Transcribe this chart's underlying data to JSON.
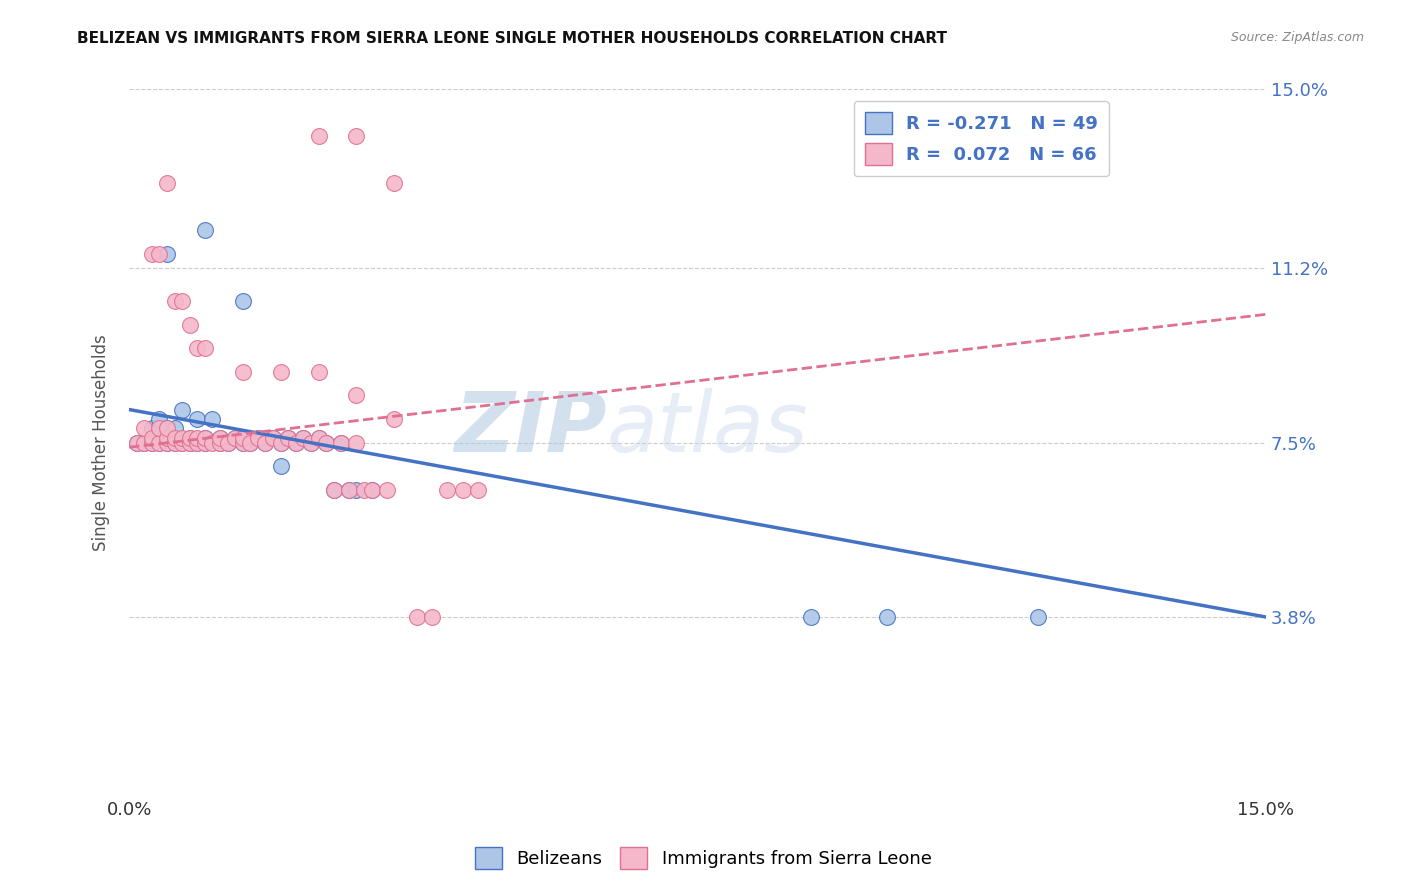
{
  "title": "BELIZEAN VS IMMIGRANTS FROM SIERRA LEONE SINGLE MOTHER HOUSEHOLDS CORRELATION CHART",
  "source": "Source: ZipAtlas.com",
  "ylabel": "Single Mother Households",
  "xmin": 0.0,
  "xmax": 0.15,
  "ymin": 0.0,
  "ymax": 0.15,
  "yticks": [
    0.038,
    0.075,
    0.112,
    0.15
  ],
  "ytick_labels": [
    "3.8%",
    "7.5%",
    "11.2%",
    "15.0%"
  ],
  "blue_R": -0.271,
  "blue_N": 49,
  "pink_R": 0.072,
  "pink_N": 66,
  "blue_color": "#adc6e8",
  "pink_color": "#f5b8cb",
  "blue_line_color": "#4472c4",
  "pink_line_color": "#e07090",
  "watermark_zip": "ZIP",
  "watermark_atlas": "atlas",
  "blue_line_y0": 0.082,
  "blue_line_y1": 0.038,
  "pink_line_y0": 0.074,
  "pink_line_y1": 0.105,
  "blue_scatter_x": [
    0.001,
    0.002,
    0.003,
    0.003,
    0.004,
    0.004,
    0.005,
    0.005,
    0.005,
    0.006,
    0.006,
    0.007,
    0.007,
    0.008,
    0.008,
    0.009,
    0.009,
    0.01,
    0.01,
    0.011,
    0.012,
    0.012,
    0.013,
    0.014,
    0.015,
    0.015,
    0.016,
    0.017,
    0.018,
    0.019,
    0.02,
    0.021,
    0.022,
    0.023,
    0.024,
    0.025,
    0.026,
    0.027,
    0.028,
    0.029,
    0.03,
    0.032,
    0.005,
    0.01,
    0.015,
    0.02,
    0.09,
    0.1,
    0.12
  ],
  "blue_scatter_y": [
    0.075,
    0.075,
    0.075,
    0.078,
    0.075,
    0.08,
    0.075,
    0.076,
    0.078,
    0.075,
    0.078,
    0.075,
    0.082,
    0.075,
    0.076,
    0.075,
    0.08,
    0.075,
    0.076,
    0.08,
    0.075,
    0.076,
    0.075,
    0.076,
    0.075,
    0.076,
    0.075,
    0.076,
    0.075,
    0.076,
    0.075,
    0.076,
    0.075,
    0.076,
    0.075,
    0.076,
    0.075,
    0.065,
    0.075,
    0.065,
    0.065,
    0.065,
    0.115,
    0.12,
    0.105,
    0.07,
    0.038,
    0.038,
    0.038
  ],
  "pink_scatter_x": [
    0.001,
    0.002,
    0.002,
    0.003,
    0.003,
    0.004,
    0.004,
    0.005,
    0.005,
    0.005,
    0.006,
    0.006,
    0.007,
    0.007,
    0.008,
    0.008,
    0.009,
    0.009,
    0.01,
    0.01,
    0.011,
    0.012,
    0.012,
    0.013,
    0.014,
    0.015,
    0.015,
    0.016,
    0.017,
    0.018,
    0.019,
    0.02,
    0.021,
    0.022,
    0.023,
    0.024,
    0.025,
    0.026,
    0.027,
    0.028,
    0.029,
    0.03,
    0.031,
    0.032,
    0.034,
    0.038,
    0.04,
    0.042,
    0.044,
    0.046,
    0.003,
    0.004,
    0.005,
    0.006,
    0.007,
    0.008,
    0.009,
    0.01,
    0.015,
    0.02,
    0.025,
    0.03,
    0.035,
    0.025,
    0.03,
    0.035
  ],
  "pink_scatter_y": [
    0.075,
    0.075,
    0.078,
    0.075,
    0.076,
    0.075,
    0.078,
    0.075,
    0.076,
    0.078,
    0.075,
    0.076,
    0.075,
    0.076,
    0.075,
    0.076,
    0.075,
    0.076,
    0.075,
    0.076,
    0.075,
    0.075,
    0.076,
    0.075,
    0.076,
    0.075,
    0.076,
    0.075,
    0.076,
    0.075,
    0.076,
    0.075,
    0.076,
    0.075,
    0.076,
    0.075,
    0.076,
    0.075,
    0.065,
    0.075,
    0.065,
    0.075,
    0.065,
    0.065,
    0.065,
    0.038,
    0.038,
    0.065,
    0.065,
    0.065,
    0.115,
    0.115,
    0.13,
    0.105,
    0.105,
    0.1,
    0.095,
    0.095,
    0.09,
    0.09,
    0.09,
    0.085,
    0.08,
    0.14,
    0.14,
    0.13
  ]
}
